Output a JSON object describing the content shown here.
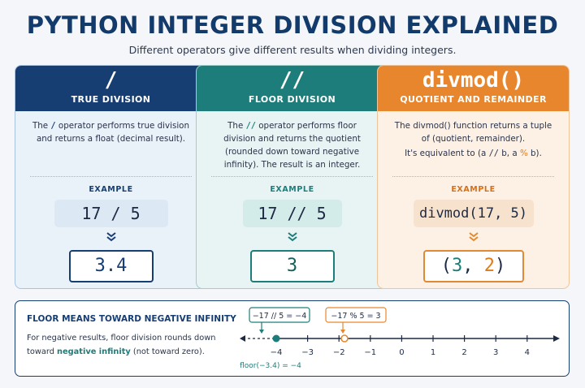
{
  "header": {
    "title": "PYTHON INTEGER DIVISION EXPLAINED",
    "subtitle": "Different operators give different results when dividing integers."
  },
  "cards": [
    {
      "symbol": "/",
      "name": "TRUE DIVISION",
      "desc_parts": [
        "The ",
        "/",
        " operator performs true division and returns a float (decimal result)."
      ],
      "example_label": "EXAMPLE",
      "example": "17 / 5",
      "result": "3.4"
    },
    {
      "symbol": "//",
      "name": "FLOOR DIVISION",
      "desc_parts": [
        "The ",
        "//",
        " operator performs floor division and returns the quotient (rounded down toward negative infinity). The result is an integer."
      ],
      "example_label": "EXAMPLE",
      "example": "17 // 5",
      "result": "3"
    },
    {
      "symbol": "divmod()",
      "name": "QUOTIENT AND REMAINDER",
      "desc_line1": "The divmod() function returns a tuple of (quotient, remainder).",
      "desc_line2_parts": [
        "It's equivalent to (a ",
        "//",
        " b, a ",
        "%",
        " b)."
      ],
      "example_label": "EXAMPLE",
      "example": "divmod(17, 5)",
      "result_parts": [
        "(",
        "3",
        ", ",
        "2",
        ")"
      ]
    }
  ],
  "floor_section": {
    "title": "FLOOR MEANS TOWARD NEGATIVE INFINITY",
    "text_before": "For negative results, floor division rounds down toward ",
    "text_highlight": "negative infinity",
    "text_after": " (not toward zero).",
    "callout_floor": "−17 // 5 = −4",
    "callout_mod": "−17 % 5 = 3",
    "floor_note": "floor(−3.4) = −4",
    "ticks": [
      "−4",
      "−3",
      "−2",
      "−1",
      "0",
      "1",
      "2",
      "3",
      "4"
    ]
  },
  "colors": {
    "navy": "#173e73",
    "teal": "#1c7d7a",
    "orange": "#e8862e"
  }
}
